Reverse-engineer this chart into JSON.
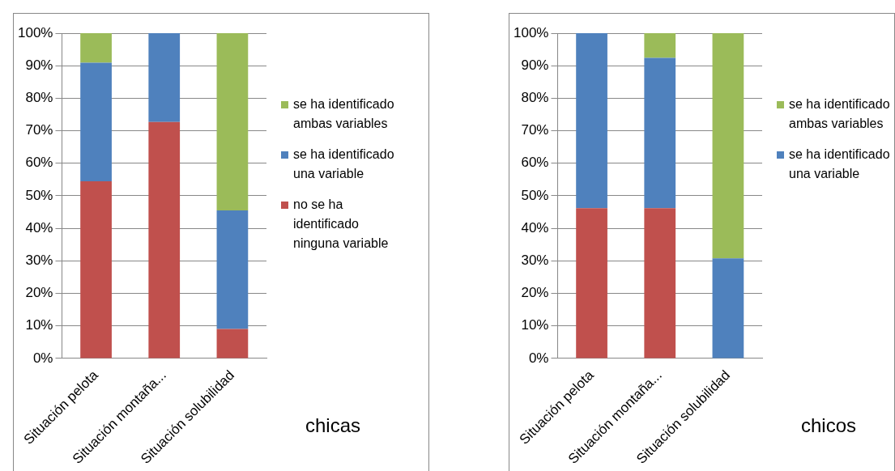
{
  "chart_data": [
    {
      "type": "bar",
      "stacked": true,
      "categories": [
        "Situación pelota",
        "Situación montaña...",
        "Situación solubilidad"
      ],
      "series": [
        {
          "name": "no se ha identificado ninguna variable",
          "color": "#c0504d",
          "values": [
            54.5,
            72.7,
            9.1
          ]
        },
        {
          "name": "se ha identificado una variable",
          "color": "#4f81bd",
          "values": [
            36.4,
            27.3,
            36.4
          ]
        },
        {
          "name": "se ha identificado ambas variables",
          "color": "#9bbb59",
          "values": [
            9.1,
            0,
            54.5
          ]
        }
      ],
      "ylim": [
        0,
        100
      ],
      "yticks": [
        {
          "value": 0,
          "label": "0%"
        },
        {
          "value": 10,
          "label": "10%"
        },
        {
          "value": 20,
          "label": "20%"
        },
        {
          "value": 30,
          "label": "30%"
        },
        {
          "value": 40,
          "label": "40%"
        },
        {
          "value": 50,
          "label": "50%"
        },
        {
          "value": 60,
          "label": "60%"
        },
        {
          "value": 70,
          "label": "70%"
        },
        {
          "value": 80,
          "label": "80%"
        },
        {
          "value": 90,
          "label": "90%"
        },
        {
          "value": 100,
          "label": "100%"
        }
      ],
      "grid": "y",
      "legend": "right",
      "annotations": [
        "chicas"
      ]
    },
    {
      "type": "bar",
      "stacked": true,
      "categories": [
        "Situación pelota",
        "Situación montaña...",
        "Situación solubilidad"
      ],
      "series": [
        {
          "color": "#c0504d",
          "values": [
            46.2,
            46.2,
            0
          ]
        },
        {
          "name": "se ha identificado una variable",
          "color": "#4f81bd",
          "values": [
            53.8,
            46.2,
            30.8
          ]
        },
        {
          "name": "se ha identificado ambas variables",
          "color": "#9bbb59",
          "values": [
            0,
            7.7,
            69.2
          ]
        }
      ],
      "ylim": [
        0,
        100
      ],
      "yticks": [
        {
          "value": 0,
          "label": "0%"
        },
        {
          "value": 10,
          "label": "10%"
        },
        {
          "value": 20,
          "label": "20%"
        },
        {
          "value": 30,
          "label": "30%"
        },
        {
          "value": 40,
          "label": "40%"
        },
        {
          "value": 50,
          "label": "50%"
        },
        {
          "value": 60,
          "label": "60%"
        },
        {
          "value": 70,
          "label": "70%"
        },
        {
          "value": 80,
          "label": "80%"
        },
        {
          "value": 90,
          "label": "90%"
        },
        {
          "value": 100,
          "label": "100%"
        }
      ],
      "grid": "y",
      "legend": "right",
      "annotations": [
        "chicos"
      ]
    }
  ]
}
